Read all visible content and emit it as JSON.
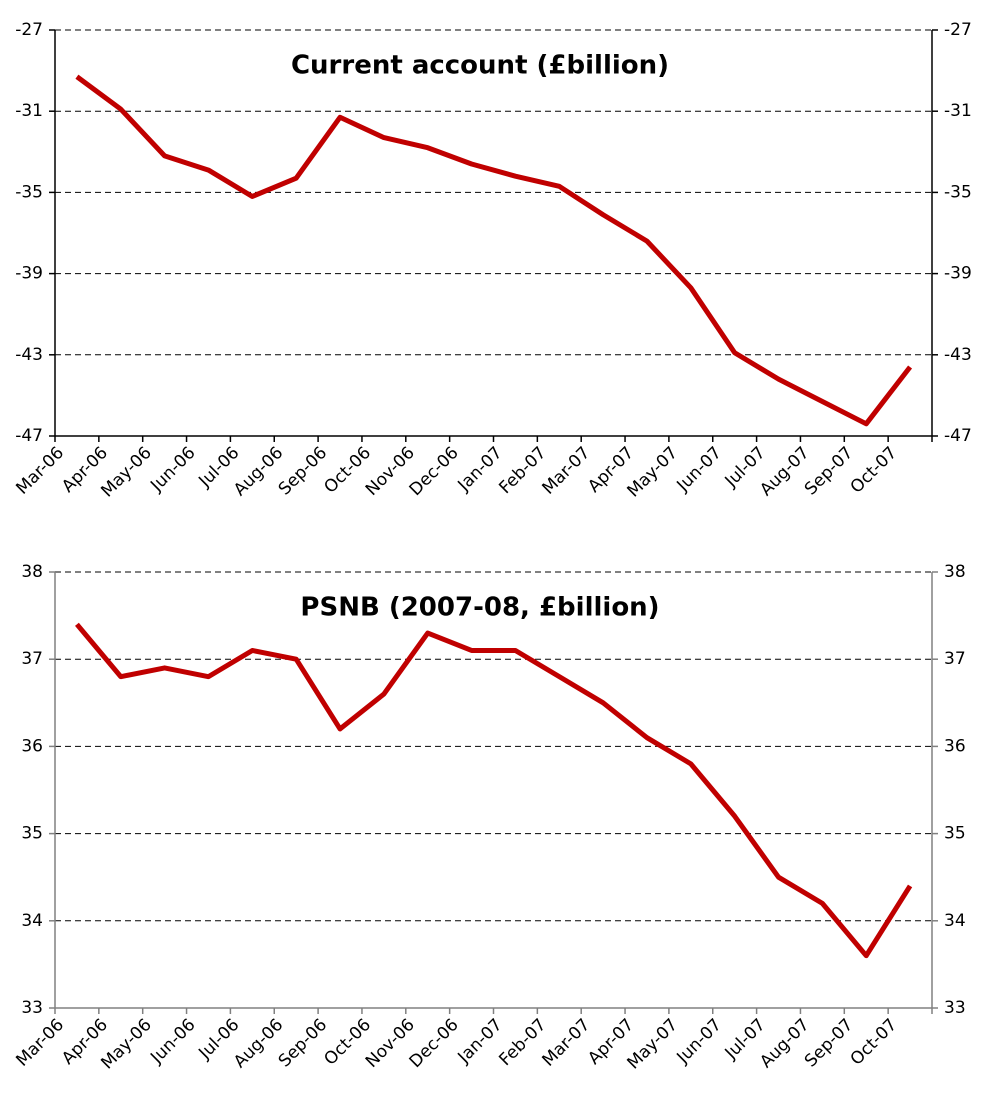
{
  "chart_data": [
    {
      "type": "line",
      "title": "Current account (£billion)",
      "categories": [
        "Mar-06",
        "Apr-06",
        "May-06",
        "Jun-06",
        "Jul-06",
        "Aug-06",
        "Sep-06",
        "Oct-06",
        "Nov-06",
        "Dec-06",
        "Jan-07",
        "Feb-07",
        "Mar-07",
        "Apr-07",
        "May-07",
        "Jun-07",
        "Jul-07",
        "Aug-07",
        "Sep-07",
        "Oct-07"
      ],
      "values": [
        -29.3,
        -30.9,
        -33.2,
        -33.9,
        -35.2,
        -34.3,
        -31.3,
        -32.3,
        -32.8,
        -33.6,
        -34.2,
        -34.7,
        -36.1,
        -37.4,
        -39.7,
        -42.9,
        -44.2,
        -45.3,
        -46.4,
        -43.6
      ],
      "color": "#c00000",
      "axis_color": "#000000",
      "ylim": [
        -47,
        -27
      ],
      "yticks": [
        -47,
        -43,
        -39,
        -35,
        -31,
        -27
      ],
      "grid": true,
      "mirror_y_axis": true
    },
    {
      "type": "line",
      "title": "PSNB (2007-08, £billion)",
      "categories": [
        "Mar-06",
        "Apr-06",
        "May-06",
        "Jun-06",
        "Jul-06",
        "Aug-06",
        "Sep-06",
        "Oct-06",
        "Nov-06",
        "Dec-06",
        "Jan-07",
        "Feb-07",
        "Mar-07",
        "Apr-07",
        "May-07",
        "Jun-07",
        "Jul-07",
        "Aug-07",
        "Sep-07",
        "Oct-07"
      ],
      "values": [
        37.4,
        36.8,
        36.9,
        36.8,
        37.1,
        37.0,
        36.2,
        36.6,
        37.3,
        37.1,
        37.1,
        36.8,
        36.5,
        36.1,
        35.8,
        35.2,
        34.5,
        34.2,
        33.6,
        34.4
      ],
      "color": "#c00000",
      "axis_color": "#808080",
      "ylim": [
        33,
        38
      ],
      "yticks": [
        33,
        34,
        35,
        36,
        37,
        38
      ],
      "grid": true,
      "mirror_y_axis": true
    }
  ]
}
